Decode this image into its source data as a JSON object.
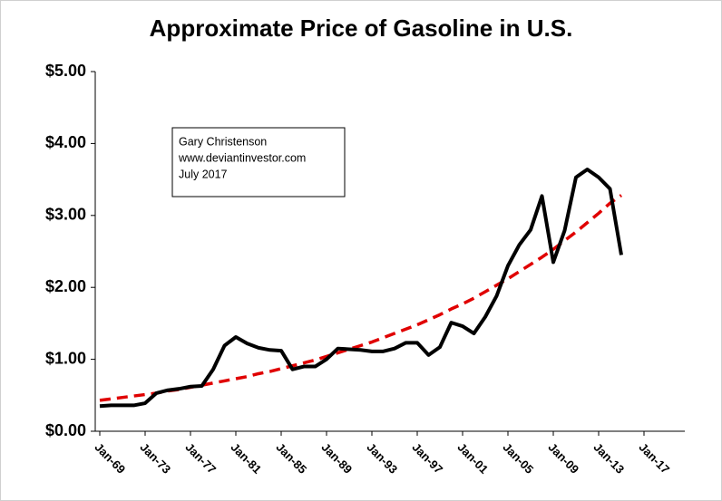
{
  "chart_data": {
    "type": "line",
    "title": "Approximate Price of Gasoline in U.S.",
    "annotation": [
      "Gary Christenson",
      "www.deviantinvestor.com",
      "July 2017"
    ],
    "x": [
      1969,
      1970,
      1971,
      1972,
      1973,
      1974,
      1975,
      1976,
      1977,
      1978,
      1979,
      1980,
      1981,
      1982,
      1983,
      1984,
      1985,
      1986,
      1987,
      1988,
      1989,
      1990,
      1991,
      1992,
      1993,
      1994,
      1995,
      1996,
      1997,
      1998,
      1999,
      2000,
      2001,
      2002,
      2003,
      2004,
      2005,
      2006,
      2007,
      2008,
      2009,
      2010,
      2011,
      2012,
      2013,
      2014,
      2015
    ],
    "series": [
      {
        "color": "#000000",
        "dash": false,
        "values": [
          0.35,
          0.36,
          0.36,
          0.36,
          0.39,
          0.53,
          0.57,
          0.59,
          0.62,
          0.63,
          0.86,
          1.19,
          1.31,
          1.22,
          1.16,
          1.13,
          1.12,
          0.86,
          0.9,
          0.9,
          1.0,
          1.15,
          1.14,
          1.13,
          1.11,
          1.11,
          1.15,
          1.23,
          1.23,
          1.06,
          1.17,
          1.51,
          1.46,
          1.36,
          1.59,
          1.88,
          2.3,
          2.59,
          2.8,
          3.27,
          2.35,
          2.79,
          3.53,
          3.64,
          3.53,
          3.37,
          2.45
        ]
      },
      {
        "color": "#e00000",
        "dash": true,
        "values": [
          0.43,
          0.45,
          0.47,
          0.49,
          0.51,
          0.53,
          0.56,
          0.58,
          0.61,
          0.64,
          0.67,
          0.7,
          0.73,
          0.76,
          0.8,
          0.83,
          0.87,
          0.91,
          0.95,
          0.99,
          1.04,
          1.09,
          1.14,
          1.19,
          1.24,
          1.3,
          1.36,
          1.42,
          1.48,
          1.55,
          1.62,
          1.7,
          1.77,
          1.85,
          1.94,
          2.03,
          2.12,
          2.22,
          2.32,
          2.42,
          2.53,
          2.65,
          2.77,
          2.9,
          3.03,
          3.17,
          3.28
        ]
      }
    ],
    "xlim": [
      1968.6,
      2020.6
    ],
    "xticks": [
      {
        "value": 1969,
        "label": "Jan-69"
      },
      {
        "value": 1973,
        "label": "Jan-73"
      },
      {
        "value": 1977,
        "label": "Jan-77"
      },
      {
        "value": 1981,
        "label": "Jan-81"
      },
      {
        "value": 1985,
        "label": "Jan-85"
      },
      {
        "value": 1989,
        "label": "Jan-89"
      },
      {
        "value": 1993,
        "label": "Jan-93"
      },
      {
        "value": 1997,
        "label": "Jan-97"
      },
      {
        "value": 2001,
        "label": "Jan-01"
      },
      {
        "value": 2005,
        "label": "Jan-05"
      },
      {
        "value": 2009,
        "label": "Jan-09"
      },
      {
        "value": 2013,
        "label": "Jan-13"
      },
      {
        "value": 2017,
        "label": "Jan-17"
      }
    ],
    "ylim": [
      0,
      5
    ],
    "yticks": [
      {
        "value": 0,
        "label": "$0.00"
      },
      {
        "value": 1,
        "label": "$1.00"
      },
      {
        "value": 2,
        "label": "$2.00"
      },
      {
        "value": 3,
        "label": "$3.00"
      },
      {
        "value": 4,
        "label": "$4.00"
      },
      {
        "value": 5,
        "label": "$5.00"
      }
    ]
  }
}
